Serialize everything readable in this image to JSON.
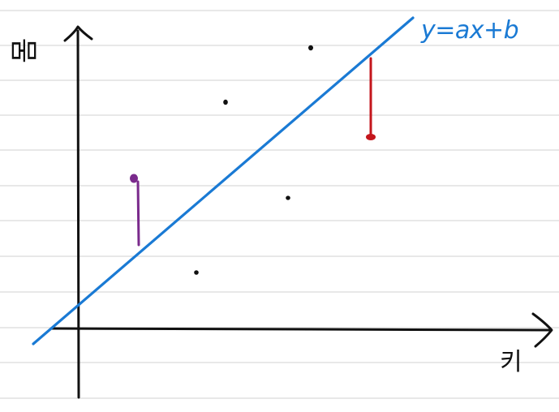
{
  "labels": {
    "y_axis": "몸",
    "x_axis": "키",
    "equation": "y=ax+b"
  },
  "colors": {
    "paper_line": "#d9d9d9",
    "axis": "#111111",
    "regression_line": "#1a7ad4",
    "point": "#111111",
    "residual_positive": "#7a2a8c",
    "residual_negative": "#c4161c"
  },
  "icons": {
    "x_arrow": "arrow-right-icon",
    "y_arrow": "arrow-up-icon"
  }
}
